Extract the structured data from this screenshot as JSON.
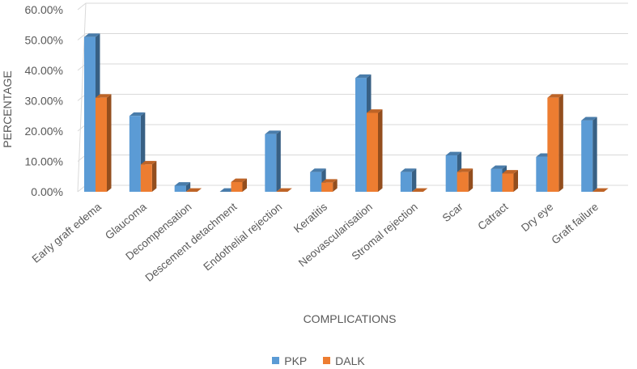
{
  "chart_data": {
    "type": "bar",
    "subtype": "3d-clustered-column",
    "title": "",
    "xlabel": "COMPLICATIONS",
    "ylabel": "PERCENTAGE",
    "ylim": [
      0,
      60
    ],
    "ytick_values": [
      0,
      10,
      20,
      30,
      40,
      50,
      60
    ],
    "ytick_labels": [
      "0.00%",
      "10.00%",
      "20.00%",
      "30.00%",
      "40.00%",
      "50.00%",
      "60.00%"
    ],
    "grid": true,
    "legend_position": "bottom",
    "categories": [
      "Early graft edema",
      "Glaucoma",
      "Decompensation",
      "Descement detachment",
      "Endothelial rejection",
      "Keratitis",
      "Neovascularisation",
      "Stromal rejection",
      "Scar",
      "Catract",
      "Dry eye",
      "Graft failure"
    ],
    "series": [
      {
        "name": "PKP",
        "color": "#5B9BD5",
        "values": [
          51,
          25,
          2,
          0,
          19,
          6.5,
          37.5,
          6.5,
          12,
          7.5,
          11.5,
          23.5
        ]
      },
      {
        "name": "DALK",
        "color": "#ED7D31",
        "values": [
          31,
          9,
          0,
          3.2,
          0,
          3,
          26,
          0,
          6.5,
          6,
          31,
          0
        ]
      }
    ]
  }
}
